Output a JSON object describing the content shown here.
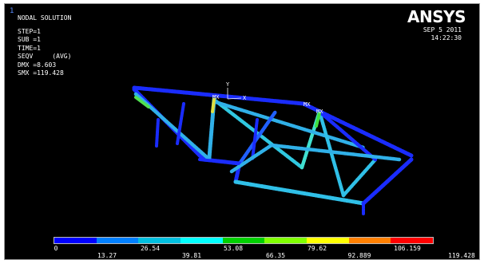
{
  "window_number": "1",
  "solution": {
    "title": "NODAL SOLUTION",
    "step": "STEP=1",
    "sub": "SUB =1",
    "time": "TIME=1",
    "seqv": "SEQV     (AVG)",
    "dmx": "DMX =8.603",
    "smx": "SMX =119.428"
  },
  "brand": {
    "logo": "ANSYS"
  },
  "timestamp": {
    "date": "SEP  5 2011",
    "time": "14:22:30"
  },
  "axis_triad": {
    "y": "Y",
    "x": "X",
    "markers": [
      "MX",
      "MX",
      "MX"
    ]
  },
  "legend": {
    "colors": [
      "#0000ff",
      "#0080ff",
      "#00c0e0",
      "#00ffff",
      "#00d000",
      "#80ff00",
      "#ffff00",
      "#ff8000",
      "#ff0000"
    ],
    "ticks_top": [
      "0",
      "26.54",
      "53.08",
      "79.62",
      "106.159"
    ],
    "ticks_bottom": [
      "13.27",
      "39.81",
      "66.35",
      "92.889",
      "119.428"
    ]
  }
}
